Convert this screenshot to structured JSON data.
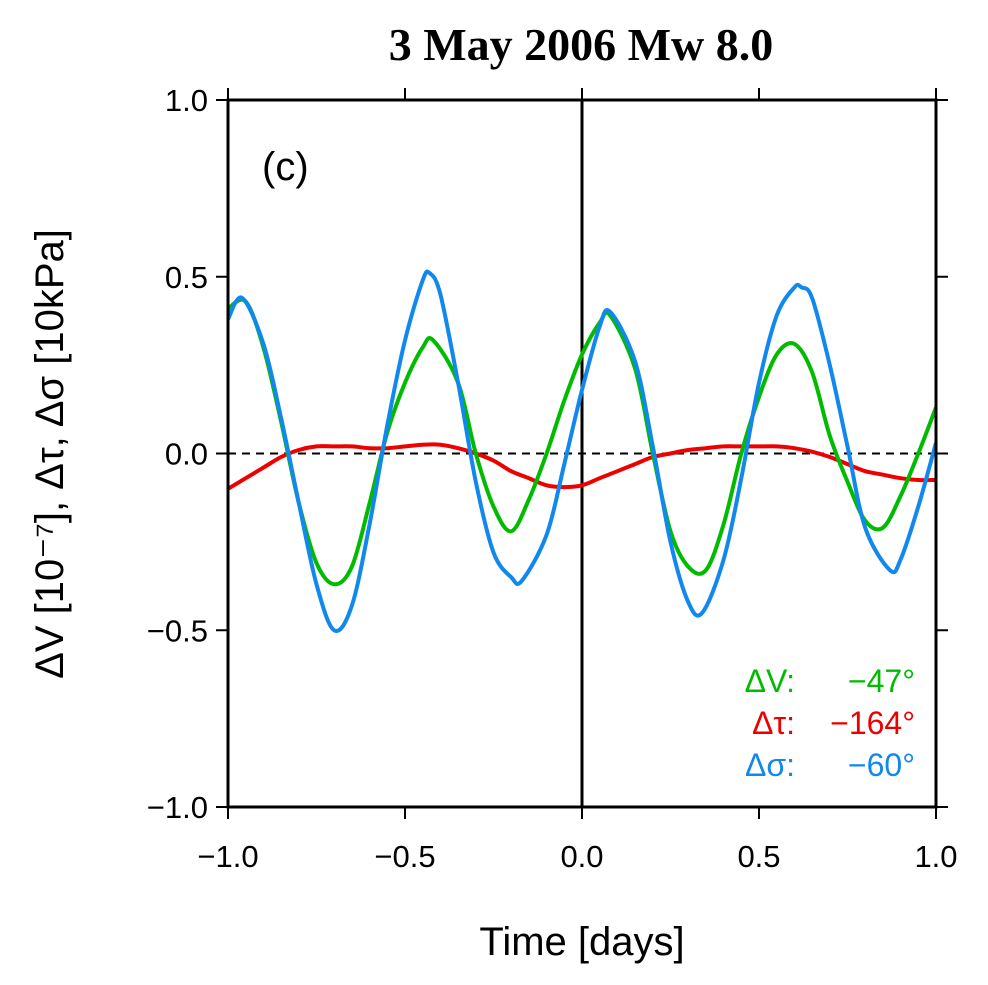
{
  "chart_data": {
    "type": "line",
    "title": "3 May 2006 Mw 8.0",
    "panel_label": "(c)",
    "xlabel": "Time [days]",
    "ylabel": "ΔV [10⁻⁷], Δτ, Δσ [10kPa]",
    "xlim": [
      -1.0,
      1.0
    ],
    "ylim": [
      -1.0,
      1.0
    ],
    "x_ticks": [
      -1.0,
      -0.5,
      0.0,
      0.5,
      1.0
    ],
    "x_tick_labels": [
      "−1.0",
      "−0.5",
      "0.0",
      "0.5",
      "1.0"
    ],
    "y_ticks": [
      -1.0,
      -0.5,
      0.0,
      0.5,
      1.0
    ],
    "y_tick_labels": [
      "−1.0",
      "−0.5",
      "0.0",
      "0.5",
      "1.0"
    ],
    "zero_line": "dashed",
    "event_time_line": 0.0,
    "grid": false,
    "legend_position": "bottom-right",
    "series": [
      {
        "name": "ΔV",
        "phase_label": "−47°",
        "color": "#00bb00",
        "x": [
          -1.0,
          -0.95,
          -0.9,
          -0.85,
          -0.8,
          -0.75,
          -0.7,
          -0.65,
          -0.6,
          -0.55,
          -0.5,
          -0.45,
          -0.42,
          -0.35,
          -0.3,
          -0.25,
          -0.2,
          -0.15,
          -0.1,
          -0.05,
          0.0,
          0.05,
          0.08,
          0.15,
          0.2,
          0.25,
          0.3,
          0.35,
          0.4,
          0.45,
          0.5,
          0.55,
          0.6,
          0.65,
          0.7,
          0.75,
          0.8,
          0.85,
          0.9,
          0.95,
          1.0
        ],
        "y": [
          0.41,
          0.43,
          0.3,
          0.09,
          -0.14,
          -0.31,
          -0.37,
          -0.32,
          -0.14,
          0.06,
          0.2,
          0.3,
          0.32,
          0.2,
          0.0,
          -0.15,
          -0.22,
          -0.13,
          0.0,
          0.15,
          0.28,
          0.37,
          0.39,
          0.24,
          0.0,
          -0.22,
          -0.32,
          -0.33,
          -0.2,
          0.0,
          0.16,
          0.28,
          0.31,
          0.23,
          0.05,
          -0.08,
          -0.19,
          -0.21,
          -0.12,
          0.0,
          0.13
        ]
      },
      {
        "name": "Δτ",
        "phase_label": "−164°",
        "color": "#ee0000",
        "x": [
          -1.0,
          -0.95,
          -0.9,
          -0.85,
          -0.8,
          -0.75,
          -0.7,
          -0.65,
          -0.6,
          -0.55,
          -0.5,
          -0.45,
          -0.4,
          -0.35,
          -0.3,
          -0.25,
          -0.2,
          -0.15,
          -0.1,
          -0.05,
          0.0,
          0.05,
          0.1,
          0.15,
          0.2,
          0.25,
          0.3,
          0.35,
          0.4,
          0.45,
          0.5,
          0.55,
          0.6,
          0.65,
          0.7,
          0.75,
          0.8,
          0.85,
          0.9,
          0.95,
          1.0
        ],
        "y": [
          -0.1,
          -0.07,
          -0.04,
          -0.01,
          0.01,
          0.02,
          0.02,
          0.02,
          0.015,
          0.015,
          0.02,
          0.025,
          0.025,
          0.015,
          0.0,
          -0.02,
          -0.05,
          -0.07,
          -0.09,
          -0.095,
          -0.09,
          -0.07,
          -0.05,
          -0.03,
          -0.01,
          0.0,
          0.01,
          0.015,
          0.02,
          0.02,
          0.02,
          0.02,
          0.015,
          0.005,
          -0.01,
          -0.03,
          -0.05,
          -0.06,
          -0.07,
          -0.075,
          -0.075
        ]
      },
      {
        "name": "Δσ",
        "phase_label": "−60°",
        "color": "#1188ee",
        "x": [
          -1.0,
          -0.96,
          -0.9,
          -0.85,
          -0.8,
          -0.75,
          -0.7,
          -0.65,
          -0.6,
          -0.55,
          -0.5,
          -0.45,
          -0.43,
          -0.4,
          -0.35,
          -0.3,
          -0.25,
          -0.2,
          -0.17,
          -0.1,
          -0.05,
          0.0,
          0.05,
          0.08,
          0.15,
          0.2,
          0.25,
          0.3,
          0.34,
          0.4,
          0.45,
          0.5,
          0.55,
          0.6,
          0.62,
          0.65,
          0.7,
          0.75,
          0.8,
          0.87,
          0.9,
          0.95,
          1.0
        ],
        "y": [
          0.38,
          0.44,
          0.31,
          0.1,
          -0.14,
          -0.37,
          -0.5,
          -0.43,
          -0.2,
          0.08,
          0.32,
          0.49,
          0.51,
          0.45,
          0.2,
          -0.08,
          -0.28,
          -0.35,
          -0.36,
          -0.23,
          -0.03,
          0.18,
          0.36,
          0.4,
          0.26,
          0.02,
          -0.25,
          -0.42,
          -0.45,
          -0.3,
          -0.07,
          0.2,
          0.39,
          0.47,
          0.47,
          0.44,
          0.25,
          0.02,
          -0.21,
          -0.33,
          -0.3,
          -0.15,
          0.03
        ]
      }
    ]
  }
}
